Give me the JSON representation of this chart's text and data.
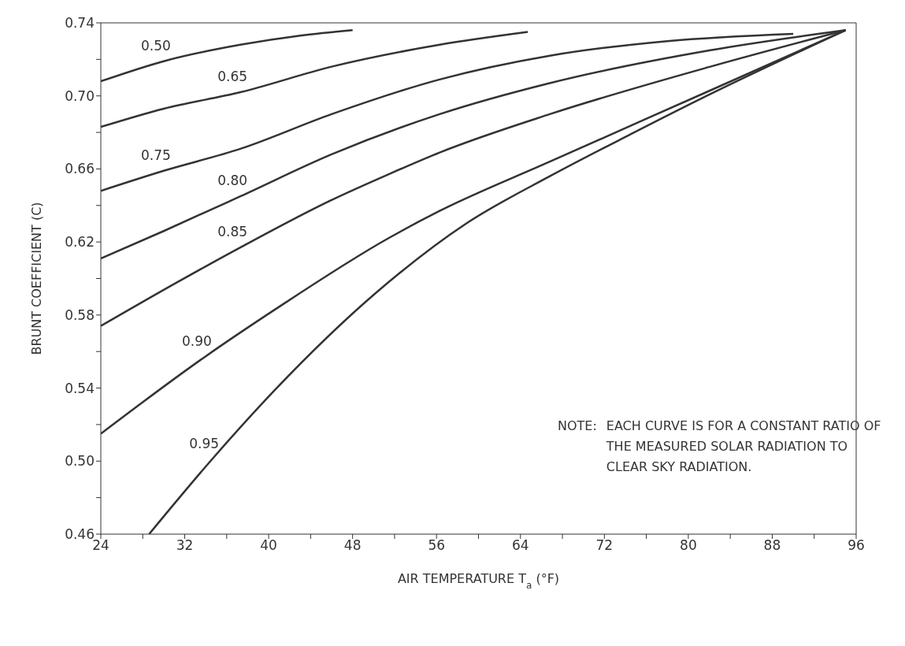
{
  "chart_data": {
    "type": "line",
    "xlabel": "AIR TEMPERATURE T$_{a}$ (°F)",
    "ylabel": "BRUNT COEFFICIENT (C)",
    "xlim": [
      24,
      96
    ],
    "xticks": [
      24,
      {
        "value": 28,
        "label": null
      },
      32,
      {
        "value": 36,
        "label": null
      },
      40,
      {
        "value": 44,
        "label": null
      },
      48,
      {
        "value": 52,
        "label": null
      },
      56,
      {
        "value": 60,
        "label": null
      },
      64,
      {
        "value": 68,
        "label": null
      },
      72,
      {
        "value": 76,
        "label": null
      },
      80,
      {
        "value": 84,
        "label": null
      },
      88,
      {
        "value": 92,
        "label": null
      },
      96
    ],
    "ylim": [
      0.46,
      0.74
    ],
    "yticks": [
      0.46,
      {
        "value": 0.48,
        "label": null
      },
      {
        "value": 0.5,
        "label": "0.50"
      },
      {
        "value": 0.52,
        "label": null
      },
      0.54,
      {
        "value": 0.56,
        "label": null
      },
      0.58,
      {
        "value": 0.6,
        "label": null
      },
      0.62,
      {
        "value": 0.64,
        "label": null
      },
      0.66,
      {
        "value": 0.68,
        "label": null
      },
      {
        "value": 0.7,
        "label": "0.70"
      },
      {
        "value": 0.72,
        "label": null
      },
      0.74
    ],
    "series": [
      {
        "name": "0.50",
        "color": "#333333",
        "x": [
          24,
          30,
          37.3,
          43,
          48
        ],
        "values": [
          0.708,
          0.719,
          0.728,
          0.733,
          0.736
        ]
      },
      {
        "name": "0.65",
        "color": "#333333",
        "x": [
          24,
          30,
          37.3,
          46,
          56.3,
          64.7
        ],
        "values": [
          0.683,
          0.693,
          0.702,
          0.716,
          0.728,
          0.735
        ]
      },
      {
        "name": "0.75",
        "color": "#333333",
        "x": [
          24,
          30,
          37.3,
          46,
          56.3,
          66.8,
          78,
          90
        ],
        "values": [
          0.648,
          0.659,
          0.671,
          0.69,
          0.709,
          0.722,
          0.73,
          0.734
        ]
      },
      {
        "name": "0.80",
        "color": "#333333",
        "x": [
          24,
          30,
          37.3,
          46,
          56.3,
          66.8,
          82.1,
          95
        ],
        "values": [
          0.611,
          0.626,
          0.645,
          0.668,
          0.69,
          0.707,
          0.725,
          0.736
        ]
      },
      {
        "name": "0.85",
        "color": "#333333",
        "x": [
          24,
          31.3,
          37.3,
          46,
          51.4,
          56.3,
          66.8,
          82.1,
          95
        ],
        "values": [
          0.574,
          0.598,
          0.617,
          0.643,
          0.657,
          0.669,
          0.69,
          0.716,
          0.736
        ]
      },
      {
        "name": "0.90",
        "color": "#333333",
        "x": [
          24,
          33.9,
          40.6,
          51.4,
          56.3,
          66.8,
          82.1,
          95
        ],
        "values": [
          0.515,
          0.557,
          0.583,
          0.622,
          0.637,
          0.664,
          0.703,
          0.736
        ]
      },
      {
        "name": "0.95",
        "color": "#333333",
        "x": [
          28.6,
          34.6,
          40.6,
          50.2,
          58.8,
          66.8,
          74.5,
          82.1,
          95
        ],
        "values": [
          0.46,
          0.501,
          0.539,
          0.592,
          0.63,
          0.656,
          0.679,
          0.701,
          0.736
        ]
      }
    ],
    "annotations": [
      "NOTE:  EACH CURVE IS FOR A CONSTANT RATIO OF THE MEASURED SOLAR RADIATION TO CLEAR SKY RADIATION."
    ]
  }
}
